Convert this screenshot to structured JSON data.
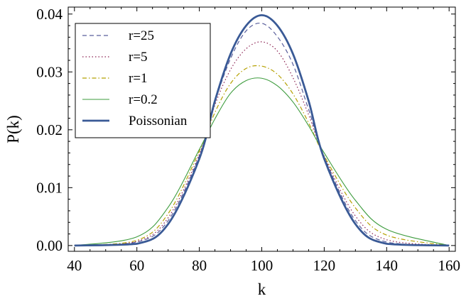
{
  "chart_data": {
    "type": "line",
    "title": "",
    "xlabel": "k",
    "ylabel": "P(k)",
    "xlim": [
      38,
      162
    ],
    "ylim": [
      -0.001,
      0.0412
    ],
    "xticks": [
      40,
      60,
      80,
      100,
      120,
      140,
      160
    ],
    "xtick_labels": [
      "40",
      "60",
      "80",
      "100",
      "120",
      "140",
      "160"
    ],
    "yticks": [
      0.0,
      0.01,
      0.02,
      0.03,
      0.04
    ],
    "ytick_labels": [
      "0.00",
      "0.01",
      "0.02",
      "0.03",
      "0.04"
    ],
    "grid": false,
    "legend_position": "top-left",
    "series": [
      {
        "name": "r=25",
        "style": "dashed",
        "color": "#5a5f9c",
        "x": [
          40,
          60,
          70,
          80,
          85,
          90,
          95,
          100,
          105,
          110,
          115,
          120,
          130,
          140,
          160
        ],
        "y": [
          0.0,
          0.0006,
          0.0043,
          0.0155,
          0.0248,
          0.0323,
          0.0371,
          0.0384,
          0.0361,
          0.0313,
          0.0235,
          0.0153,
          0.0043,
          0.0006,
          0.0
        ]
      },
      {
        "name": "r=5",
        "style": "dotted",
        "color": "#8b2252",
        "x": [
          40,
          60,
          70,
          80,
          85,
          90,
          95,
          100,
          105,
          110,
          115,
          120,
          130,
          140,
          160
        ],
        "y": [
          0.0,
          0.0007,
          0.0048,
          0.0158,
          0.0243,
          0.0304,
          0.034,
          0.0352,
          0.0336,
          0.029,
          0.0226,
          0.0154,
          0.0051,
          0.001,
          0.0
        ]
      },
      {
        "name": "r=1",
        "style": "dashdot",
        "color": "#b5a000",
        "x": [
          40,
          60,
          70,
          80,
          85,
          90,
          95,
          100,
          105,
          110,
          115,
          120,
          130,
          140,
          160
        ],
        "y": [
          0.0,
          0.0009,
          0.0055,
          0.0163,
          0.023,
          0.028,
          0.0306,
          0.031,
          0.0296,
          0.0262,
          0.0212,
          0.0155,
          0.0065,
          0.0018,
          0.0
        ]
      },
      {
        "name": "r=0.2",
        "style": "solid-thin",
        "color": "#3e9c3e",
        "x": [
          40,
          60,
          70,
          80,
          85,
          90,
          95,
          100,
          105,
          110,
          115,
          120,
          130,
          140,
          160
        ],
        "y": [
          0.0,
          0.0015,
          0.0066,
          0.0166,
          0.0219,
          0.0263,
          0.0285,
          0.0289,
          0.0276,
          0.0248,
          0.0207,
          0.016,
          0.0078,
          0.0028,
          0.0
        ]
      },
      {
        "name": "Poissonian",
        "style": "solid-thick",
        "color": "#3a5a96",
        "x": [
          40,
          60,
          70,
          80,
          85,
          90,
          95,
          100,
          105,
          110,
          115,
          120,
          130,
          140,
          160
        ],
        "y": [
          0.0,
          0.0003,
          0.0037,
          0.015,
          0.025,
          0.0331,
          0.038,
          0.0398,
          0.038,
          0.0331,
          0.025,
          0.015,
          0.0037,
          0.0003,
          0.0
        ]
      }
    ]
  }
}
